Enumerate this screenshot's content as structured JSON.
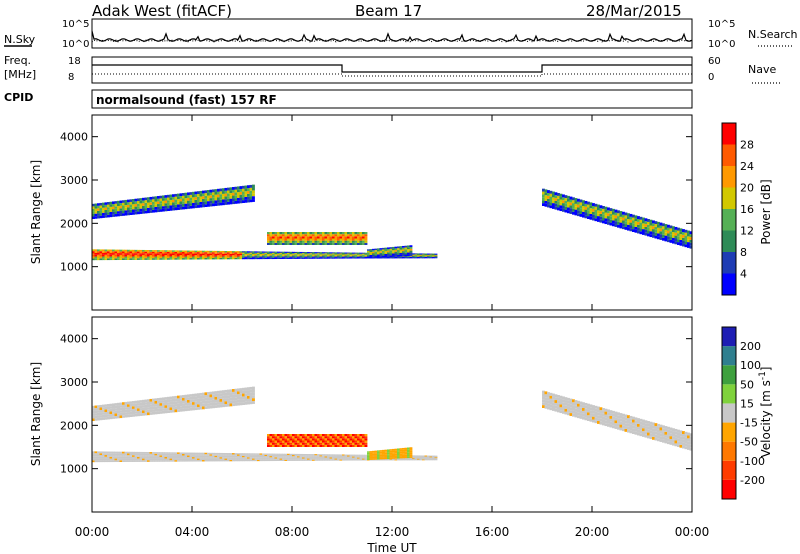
{
  "header": {
    "site": "Adak West (fitACF)",
    "beam": "Beam 17",
    "date": "28/Mar/2015",
    "mode": "normalsound (fast) 157 RF"
  },
  "side_labels": {
    "nsky": "N.Sky",
    "freq_line1": "Freq.",
    "freq_line2": "[MHz]",
    "cpid": "CPID",
    "nsearch": "N.Search",
    "nave": "Nave"
  },
  "noise_panel": {
    "y_ticks": [
      "10^5",
      "10^0"
    ],
    "right_ticks": [
      "10^5",
      "10^0"
    ]
  },
  "freq_panel": {
    "y_ticks": [
      "18",
      "8"
    ],
    "right_ticks": [
      "60",
      "0"
    ]
  },
  "colors": {
    "power_scale": [
      "#0000ff",
      "#1e3cb4",
      "#2e8b57",
      "#55b055",
      "#d2c800",
      "#ff9900",
      "#ff5a00",
      "#ff0000"
    ],
    "velocity_scale": [
      "#1e1eb4",
      "#2f7f8f",
      "#3ea03e",
      "#7fd23c",
      "#c8c8c8",
      "#ffa500",
      "#ff7800",
      "#ff3c00",
      "#ff0000"
    ]
  },
  "chart_data": [
    {
      "type": "heatmap",
      "panel": "power",
      "xlabel": "Time UT",
      "ylabel": "Slant Range [km]",
      "x_tick_labels": [
        "00:00",
        "04:00",
        "08:00",
        "12:00",
        "16:00",
        "20:00",
        "00:00"
      ],
      "xlim_hours": [
        0,
        24
      ],
      "ylim": [
        0,
        4500
      ],
      "y_tick_labels": [
        "1000",
        "2000",
        "3000",
        "4000"
      ],
      "y_ticks": [
        1000,
        2000,
        3000,
        4000
      ],
      "colorbar_label": "Power [dB]",
      "colorbar_ticks": [
        "4",
        "8",
        "12",
        "16",
        "20",
        "24",
        "28"
      ],
      "bands": [
        {
          "t0": 0.0,
          "t1": 13.8,
          "r0": 1150,
          "r1": 1400,
          "tend_r0": 1200,
          "tend_r1": 1300
        },
        {
          "t0": 0.0,
          "t1": 6.5,
          "r0": 2100,
          "r1": 2450,
          "tend_r0": 2500,
          "tend_r1": 2900
        },
        {
          "t0": 7.0,
          "t1": 11.0,
          "r0": 1500,
          "r1": 1800,
          "tend_r0": 1500,
          "tend_r1": 1800
        },
        {
          "t0": 11.0,
          "t1": 12.8,
          "r0": 1200,
          "r1": 1400,
          "tend_r0": 1250,
          "tend_r1": 1500
        },
        {
          "t0": 18.0,
          "t1": 24.0,
          "r0": 2400,
          "r1": 2800,
          "tend_r0": 1400,
          "tend_r1": 1800
        }
      ]
    },
    {
      "type": "heatmap",
      "panel": "velocity",
      "xlabel": "Time UT",
      "ylabel": "Slant Range [km]",
      "x_tick_labels": [
        "00:00",
        "04:00",
        "08:00",
        "12:00",
        "16:00",
        "20:00",
        "00:00"
      ],
      "xlim_hours": [
        0,
        24
      ],
      "ylim": [
        0,
        4500
      ],
      "y_tick_labels": [
        "1000",
        "2000",
        "3000",
        "4000"
      ],
      "y_ticks": [
        1000,
        2000,
        3000,
        4000
      ],
      "colorbar_label": "Velocity [m s^-1]",
      "colorbar_ticks": [
        "200",
        "100",
        "50",
        "15",
        "-15",
        "-50",
        "-100",
        "-200"
      ]
    }
  ]
}
